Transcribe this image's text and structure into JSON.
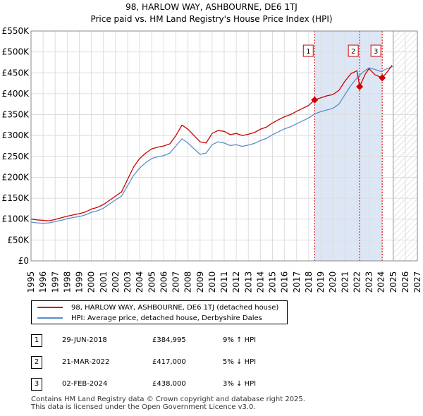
{
  "chart_data": {
    "type": "line",
    "title": "98, HARLOW WAY, ASHBOURNE, DE6 1TJ",
    "subtitle": "Price paid vs. HM Land Registry's House Price Index (HPI)",
    "x_range": [
      1995,
      2027
    ],
    "y_range": [
      0,
      550000
    ],
    "x_ticks": [
      "1995",
      "1996",
      "1997",
      "1998",
      "1999",
      "2000",
      "2001",
      "2002",
      "2003",
      "2004",
      "2005",
      "2006",
      "2007",
      "2008",
      "2009",
      "2010",
      "2011",
      "2012",
      "2013",
      "2014",
      "2015",
      "2016",
      "2017",
      "2018",
      "2019",
      "2020",
      "2021",
      "2022",
      "2023",
      "2024",
      "2025",
      "2026",
      "2027"
    ],
    "y_ticks": [
      {
        "value": 0,
        "label": "£0"
      },
      {
        "value": 50000,
        "label": "£50K"
      },
      {
        "value": 100000,
        "label": "£100K"
      },
      {
        "value": 150000,
        "label": "£150K"
      },
      {
        "value": 200000,
        "label": "£200K"
      },
      {
        "value": 250000,
        "label": "£250K"
      },
      {
        "value": 300000,
        "label": "£300K"
      },
      {
        "value": 350000,
        "label": "£350K"
      },
      {
        "value": 400000,
        "label": "£400K"
      },
      {
        "value": 450000,
        "label": "£450K"
      },
      {
        "value": 500000,
        "label": "£500K"
      },
      {
        "value": 550000,
        "label": "£550K"
      }
    ],
    "grid": true,
    "shaded_region": {
      "from": 2018.49,
      "to": 2024.09
    },
    "projection_from": 2025.0,
    "series": [
      {
        "name": "98, HARLOW WAY, ASHBOURNE, DE6 1TJ (detached house)",
        "color": "#cc0000",
        "points": [
          [
            1995.0,
            100000
          ],
          [
            1995.5,
            98000
          ],
          [
            1996.0,
            97000
          ],
          [
            1996.5,
            96000
          ],
          [
            1997.0,
            99000
          ],
          [
            1997.5,
            103000
          ],
          [
            1998.0,
            107000
          ],
          [
            1998.5,
            110000
          ],
          [
            1999.0,
            113000
          ],
          [
            1999.5,
            117000
          ],
          [
            2000.0,
            124000
          ],
          [
            2000.5,
            128000
          ],
          [
            2001.0,
            135000
          ],
          [
            2001.5,
            145000
          ],
          [
            2002.0,
            155000
          ],
          [
            2002.5,
            165000
          ],
          [
            2003.0,
            195000
          ],
          [
            2003.5,
            225000
          ],
          [
            2004.0,
            245000
          ],
          [
            2004.5,
            258000
          ],
          [
            2005.0,
            268000
          ],
          [
            2005.5,
            272000
          ],
          [
            2006.0,
            275000
          ],
          [
            2006.5,
            280000
          ],
          [
            2007.0,
            300000
          ],
          [
            2007.5,
            325000
          ],
          [
            2008.0,
            315000
          ],
          [
            2008.5,
            300000
          ],
          [
            2009.0,
            285000
          ],
          [
            2009.5,
            282000
          ],
          [
            2010.0,
            305000
          ],
          [
            2010.5,
            312000
          ],
          [
            2011.0,
            310000
          ],
          [
            2011.5,
            302000
          ],
          [
            2012.0,
            305000
          ],
          [
            2012.5,
            300000
          ],
          [
            2013.0,
            303000
          ],
          [
            2013.5,
            307000
          ],
          [
            2014.0,
            315000
          ],
          [
            2014.5,
            320000
          ],
          [
            2015.0,
            330000
          ],
          [
            2015.5,
            338000
          ],
          [
            2016.0,
            345000
          ],
          [
            2016.5,
            350000
          ],
          [
            2017.0,
            358000
          ],
          [
            2017.5,
            365000
          ],
          [
            2018.0,
            372000
          ],
          [
            2018.49,
            384995
          ],
          [
            2019.0,
            390000
          ],
          [
            2019.5,
            395000
          ],
          [
            2020.0,
            398000
          ],
          [
            2020.5,
            408000
          ],
          [
            2021.0,
            430000
          ],
          [
            2021.5,
            448000
          ],
          [
            2022.0,
            455000
          ],
          [
            2022.22,
            417000
          ],
          [
            2022.7,
            448000
          ],
          [
            2023.0,
            460000
          ],
          [
            2023.5,
            445000
          ],
          [
            2024.09,
            438000
          ],
          [
            2024.5,
            452000
          ],
          [
            2024.9,
            468000
          ]
        ]
      },
      {
        "name": "HPI: Average price, detached house, Derbyshire Dales",
        "color": "#5b8ec8",
        "points": [
          [
            1995.0,
            93000
          ],
          [
            1995.5,
            91000
          ],
          [
            1996.0,
            90000
          ],
          [
            1996.5,
            91000
          ],
          [
            1997.0,
            94000
          ],
          [
            1997.5,
            97000
          ],
          [
            1998.0,
            101000
          ],
          [
            1998.5,
            104000
          ],
          [
            1999.0,
            106000
          ],
          [
            1999.5,
            110000
          ],
          [
            2000.0,
            116000
          ],
          [
            2000.5,
            120000
          ],
          [
            2001.0,
            126000
          ],
          [
            2001.5,
            136000
          ],
          [
            2002.0,
            146000
          ],
          [
            2002.5,
            155000
          ],
          [
            2003.0,
            180000
          ],
          [
            2003.5,
            205000
          ],
          [
            2004.0,
            222000
          ],
          [
            2004.5,
            235000
          ],
          [
            2005.0,
            245000
          ],
          [
            2005.5,
            249000
          ],
          [
            2006.0,
            252000
          ],
          [
            2006.5,
            258000
          ],
          [
            2007.0,
            275000
          ],
          [
            2007.5,
            292000
          ],
          [
            2008.0,
            282000
          ],
          [
            2008.5,
            268000
          ],
          [
            2009.0,
            255000
          ],
          [
            2009.5,
            258000
          ],
          [
            2010.0,
            278000
          ],
          [
            2010.5,
            285000
          ],
          [
            2011.0,
            282000
          ],
          [
            2011.5,
            276000
          ],
          [
            2012.0,
            278000
          ],
          [
            2012.5,
            274000
          ],
          [
            2013.0,
            277000
          ],
          [
            2013.5,
            281000
          ],
          [
            2014.0,
            288000
          ],
          [
            2014.5,
            293000
          ],
          [
            2015.0,
            302000
          ],
          [
            2015.5,
            309000
          ],
          [
            2016.0,
            316000
          ],
          [
            2016.5,
            321000
          ],
          [
            2017.0,
            328000
          ],
          [
            2017.5,
            335000
          ],
          [
            2018.0,
            342000
          ],
          [
            2018.5,
            352000
          ],
          [
            2019.0,
            357000
          ],
          [
            2019.5,
            361000
          ],
          [
            2020.0,
            365000
          ],
          [
            2020.5,
            375000
          ],
          [
            2021.0,
            398000
          ],
          [
            2021.5,
            420000
          ],
          [
            2022.0,
            438000
          ],
          [
            2022.5,
            452000
          ],
          [
            2023.0,
            462000
          ],
          [
            2023.5,
            458000
          ],
          [
            2024.0,
            453000
          ],
          [
            2024.5,
            460000
          ],
          [
            2025.0,
            466000
          ]
        ]
      }
    ],
    "markers": [
      {
        "label": "1",
        "x": 2018.49,
        "y": 384995
      },
      {
        "label": "2",
        "x": 2022.22,
        "y": 417000
      },
      {
        "label": "3",
        "x": 2024.09,
        "y": 438000
      }
    ]
  },
  "legend": {
    "items": [
      {
        "label": "98, HARLOW WAY, ASHBOURNE, DE6 1TJ (detached house)",
        "color": "#cc0000"
      },
      {
        "label": "HPI: Average price, detached house, Derbyshire Dales",
        "color": "#5b8ec8"
      }
    ]
  },
  "transactions": [
    {
      "num": "1",
      "date": "29-JUN-2018",
      "price": "£384,995",
      "hpi": "9% ↑ HPI"
    },
    {
      "num": "2",
      "date": "21-MAR-2022",
      "price": "£417,000",
      "hpi": "5% ↓ HPI"
    },
    {
      "num": "3",
      "date": "02-FEB-2024",
      "price": "£438,000",
      "hpi": "3% ↓ HPI"
    }
  ],
  "footer": {
    "line1": "Contains HM Land Registry data © Crown copyright and database right 2025.",
    "line2": "This data is licensed under the Open Government Licence v3.0."
  }
}
